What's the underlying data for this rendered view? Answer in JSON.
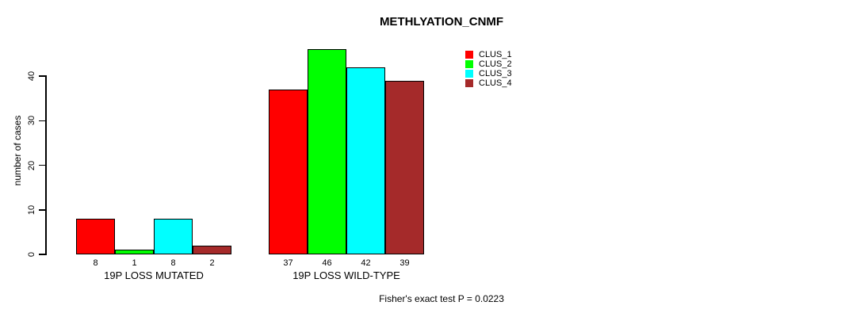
{
  "figure": {
    "background": "#ffffff",
    "axis_color": "#000000"
  },
  "chart_data": {
    "type": "bar",
    "title": "METHLYATION_CNMF",
    "ylabel": "number of cases",
    "xlabel": "",
    "categories": [
      "19P LOSS MUTATED",
      "19P LOSS WILD-TYPE"
    ],
    "series": [
      {
        "name": "CLUS_1",
        "color": "#ff0000",
        "values": [
          8,
          37
        ]
      },
      {
        "name": "CLUS_2",
        "color": "#00ff00",
        "values": [
          1,
          46
        ]
      },
      {
        "name": "CLUS_3",
        "color": "#00ffff",
        "values": [
          8,
          42
        ]
      },
      {
        "name": "CLUS_4",
        "color": "#a52a2a",
        "values": [
          2,
          39
        ]
      }
    ],
    "bar_value_labels": [
      [
        "8",
        "1",
        "8",
        "2"
      ],
      [
        "37",
        "46",
        "42",
        "39"
      ]
    ],
    "yticks": [
      0,
      10,
      20,
      30,
      40
    ],
    "ylim": [
      0,
      46
    ],
    "grid": false,
    "legend_position": "top-right",
    "bar_outline_color": "#000000",
    "annotation": "Fisher's exact test P = 0.0223"
  }
}
